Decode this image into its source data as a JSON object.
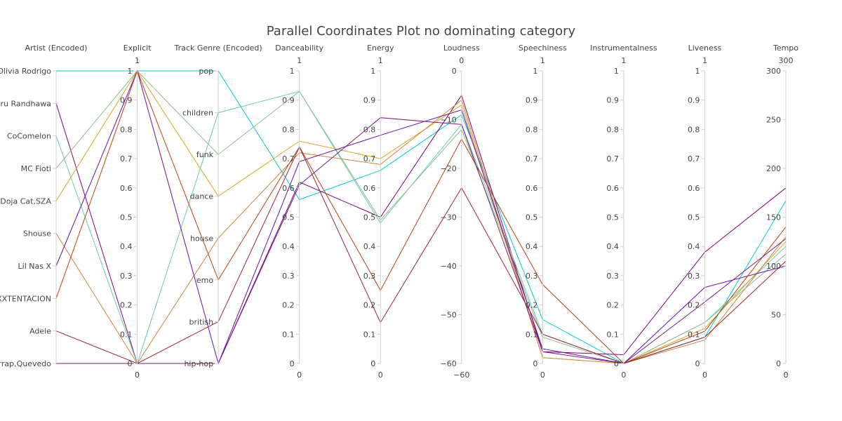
{
  "chart_data": {
    "type": "parallel_coordinates",
    "title": "Parallel Coordinates Plot no dominating category",
    "axes": [
      {
        "label": "Artist (Encoded)",
        "kind": "categorical",
        "categories": [
          "Olivia Rodrigo",
          "Guru Randhawa",
          "CoComelon",
          "MC Fioti",
          "Doja Cat,SZA",
          "Shouse",
          "Lil Nas X",
          "XXXTENTACION",
          "Adele",
          "Bizarrap,Quevedo"
        ]
      },
      {
        "label": "Explicit",
        "kind": "numeric",
        "range": [
          0,
          1
        ],
        "ticks": [
          0,
          0.1,
          0.2,
          0.3,
          0.4,
          0.5,
          0.6,
          0.7,
          0.8,
          0.9,
          1
        ],
        "range_labels": [
          "1",
          "0"
        ]
      },
      {
        "label": "Track Genre (Encoded)",
        "kind": "categorical",
        "categories": [
          "pop",
          "children",
          "funk",
          "dance",
          "house",
          "emo",
          "british",
          "hip-hop"
        ]
      },
      {
        "label": "Danceability",
        "kind": "numeric",
        "range": [
          0,
          1
        ],
        "ticks": [
          0,
          0.1,
          0.2,
          0.3,
          0.4,
          0.5,
          0.6,
          0.7,
          0.8,
          0.9,
          1
        ],
        "range_labels": [
          "1",
          "0"
        ]
      },
      {
        "label": "Energy",
        "kind": "numeric",
        "range": [
          0,
          1
        ],
        "ticks": [
          0,
          0.1,
          0.2,
          0.3,
          0.4,
          0.5,
          0.6,
          0.7,
          0.8,
          0.9,
          1
        ],
        "range_labels": [
          "1",
          "0"
        ]
      },
      {
        "label": "Loudness",
        "kind": "numeric",
        "range": [
          -60,
          0
        ],
        "ticks": [
          -60,
          -50,
          -40,
          -30,
          -20,
          -10,
          0
        ],
        "range_labels": [
          "0",
          "−60"
        ]
      },
      {
        "label": "Speechiness",
        "kind": "numeric",
        "range": [
          0,
          1
        ],
        "ticks": [
          0,
          0.1,
          0.2,
          0.3,
          0.4,
          0.5,
          0.6,
          0.7,
          0.8,
          0.9,
          1
        ],
        "range_labels": [
          "1",
          "0"
        ]
      },
      {
        "label": "Instrumentalness",
        "kind": "numeric",
        "range": [
          0,
          1
        ],
        "ticks": [
          0,
          0.1,
          0.2,
          0.3,
          0.4,
          0.5,
          0.6,
          0.7,
          0.8,
          0.9,
          1
        ],
        "range_labels": [
          "1",
          "0"
        ]
      },
      {
        "label": "Liveness",
        "kind": "numeric",
        "range": [
          0,
          1
        ],
        "ticks": [
          0,
          0.1,
          0.2,
          0.3,
          0.4,
          0.5,
          0.6,
          0.7,
          0.8,
          0.9,
          1
        ],
        "range_labels": [
          "1",
          "0"
        ]
      },
      {
        "label": "Tempo",
        "kind": "numeric",
        "range": [
          0,
          300
        ],
        "ticks": [
          0,
          50,
          100,
          150,
          200,
          250,
          300
        ],
        "range_labels": [
          "300",
          "0"
        ]
      }
    ],
    "records": [
      {
        "color": "#00ced1",
        "values": [
          "Olivia Rodrigo",
          1,
          "pop",
          0.56,
          0.66,
          -9,
          0.15,
          0.0,
          0.09,
          167
        ]
      },
      {
        "color": "#800080",
        "values": [
          "Guru Randhawa",
          0,
          "hip-hop",
          0.62,
          0.5,
          -5,
          0.04,
          0.03,
          0.38,
          180
        ]
      },
      {
        "color": "#66cdaa",
        "values": [
          "CoComelon",
          0,
          "children",
          0.93,
          0.48,
          -11,
          0.1,
          0.0,
          0.14,
          120
        ]
      },
      {
        "color": "#8fbc8f",
        "values": [
          "MC Fioti",
          1,
          "funk",
          0.93,
          0.49,
          -12,
          0.09,
          0.0,
          0.14,
          112
        ]
      },
      {
        "color": "#daa520",
        "values": [
          "Doja Cat,SZA",
          1,
          "dance",
          0.76,
          0.7,
          -7,
          0.02,
          0.0,
          0.12,
          125
        ]
      },
      {
        "color": "#cd853f",
        "values": [
          "Shouse",
          0,
          "house",
          0.72,
          0.68,
          -6,
          0.02,
          0.0,
          0.08,
          130
        ]
      },
      {
        "color": "#6a0dad",
        "values": [
          "Lil Nas X",
          1,
          "hip-hop",
          0.69,
          0.78,
          -8,
          0.05,
          0.0,
          0.26,
          100
        ]
      },
      {
        "color": "#b7410e",
        "values": [
          "XXXTENTACION",
          1,
          "emo",
          0.74,
          0.25,
          -14,
          0.27,
          0.0,
          0.11,
          140
        ]
      },
      {
        "color": "#9b2335",
        "values": [
          "Adele",
          0,
          "british",
          0.74,
          0.14,
          -24,
          0.1,
          0.0,
          0.09,
          105
        ]
      },
      {
        "color": "#7b1e7a",
        "values": [
          "Bizarrap,Quevedo",
          0,
          "hip-hop",
          0.61,
          0.84,
          -11,
          0.04,
          0.0,
          0.21,
          128
        ]
      }
    ]
  }
}
